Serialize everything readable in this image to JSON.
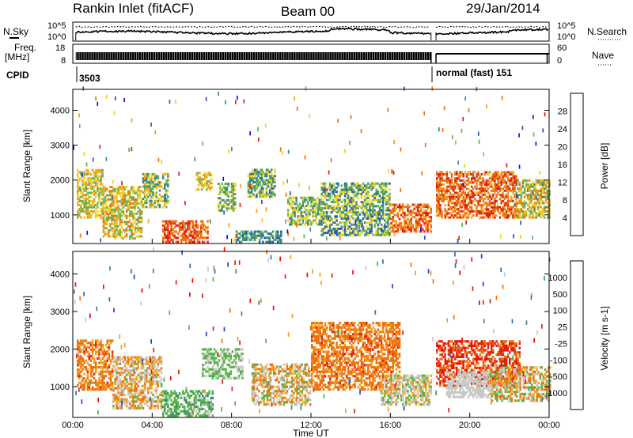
{
  "header": {
    "station": "Rankin Inlet (fitACF)",
    "beam": "Beam 00",
    "date": "29/Jan/2014"
  },
  "status_panel": {
    "nsky_label": "N.Sky",
    "nsky_ticks": [
      "10^5",
      "10^0"
    ],
    "nsearch_label": "N.Search",
    "nsearch_ticks": [
      "10^5",
      "10^0"
    ],
    "freq_label": "Freq.",
    "freq_unit": "[MHz]",
    "freq_ticks": [
      "18",
      "8"
    ],
    "nave_label": "Nave",
    "nave_ticks": [
      "60",
      "0"
    ],
    "cpid_label": "CPID",
    "cpid_first": "3503",
    "cpid_second": "normal (fast) 151"
  },
  "x_axis": {
    "label": "Time UT",
    "ticks": [
      "00:00",
      "04:00",
      "08:00",
      "12:00",
      "16:00",
      "20:00",
      "00:00"
    ],
    "range_hours": [
      0,
      24
    ]
  },
  "chart_data": [
    {
      "type": "heatmap",
      "panel": "power",
      "ylabel": "Slant Range [km]",
      "yticks": [
        "1000",
        "2000",
        "3000",
        "4000"
      ],
      "ylim": [
        180,
        4600
      ],
      "xlim": [
        0,
        24
      ],
      "colorbar_label": "Power [dB]",
      "colorbar_ticks": [
        "4",
        "8",
        "12",
        "16",
        "20",
        "24",
        "28"
      ],
      "colorbar_colors": [
        "#1010f0",
        "#2a58b4",
        "#3c8c7c",
        "#64b45a",
        "#f0d020",
        "#f0a020",
        "#f07010",
        "#e02010"
      ],
      "clim": [
        0,
        32
      ],
      "regions": [
        {
          "t": [
            0.2,
            1.5
          ],
          "r": [
            900,
            2300
          ],
          "v": [
            12,
            24
          ]
        },
        {
          "t": [
            1.5,
            3.5
          ],
          "r": [
            300,
            1800
          ],
          "v": [
            12,
            26
          ]
        },
        {
          "t": [
            3.5,
            4.8
          ],
          "r": [
            1200,
            2200
          ],
          "v": [
            8,
            22
          ]
        },
        {
          "t": [
            4.5,
            6.8
          ],
          "r": [
            200,
            800
          ],
          "v": [
            24,
            31
          ]
        },
        {
          "t": [
            6.2,
            7.0
          ],
          "r": [
            1700,
            2200
          ],
          "v": [
            14,
            24
          ]
        },
        {
          "t": [
            7.3,
            8.2
          ],
          "r": [
            1100,
            1900
          ],
          "v": [
            8,
            20
          ]
        },
        {
          "t": [
            8.2,
            10.5
          ],
          "r": [
            200,
            500
          ],
          "v": [
            6,
            14
          ]
        },
        {
          "t": [
            8.8,
            10.2
          ],
          "r": [
            1500,
            2300
          ],
          "v": [
            6,
            20
          ]
        },
        {
          "t": [
            10.8,
            12.5
          ],
          "r": [
            700,
            1500
          ],
          "v": [
            8,
            20
          ]
        },
        {
          "t": [
            12.5,
            16.0
          ],
          "r": [
            400,
            1900
          ],
          "v": [
            6,
            20
          ]
        },
        {
          "t": [
            16.0,
            18.0
          ],
          "r": [
            500,
            1300
          ],
          "v": [
            22,
            31
          ]
        },
        {
          "t": [
            18.3,
            22.3
          ],
          "r": [
            900,
            2200
          ],
          "v": [
            22,
            31
          ]
        },
        {
          "t": [
            22.3,
            24.0
          ],
          "r": [
            900,
            2000
          ],
          "v": [
            10,
            26
          ]
        }
      ]
    },
    {
      "type": "heatmap",
      "panel": "velocity",
      "ylabel": "Slant Range [km]",
      "yticks": [
        "1000",
        "2000",
        "3000",
        "4000"
      ],
      "ylim": [
        180,
        4600
      ],
      "xlim": [
        0,
        24
      ],
      "colorbar_label": "Velocity [m s-1]",
      "colorbar_ticks": [
        "1000",
        "500",
        "100",
        "25",
        "-25",
        "-100",
        "-500",
        "-1000"
      ],
      "colorbar_colors": [
        "#1c40d8",
        "#2c70b0",
        "#3c8c6c",
        "#58b448",
        "#c8c8c8",
        "#f0a020",
        "#f07010",
        "#e02010",
        "#ff0000"
      ],
      "clim": [
        -1200,
        1200
      ],
      "regions": [
        {
          "t": [
            0.2,
            2.0
          ],
          "r": [
            900,
            2200
          ],
          "v": [
            -700,
            -200
          ]
        },
        {
          "t": [
            2.0,
            4.5
          ],
          "r": [
            400,
            1800
          ],
          "v": [
            -600,
            200
          ]
        },
        {
          "t": [
            4.5,
            7.0
          ],
          "r": [
            200,
            900
          ],
          "v": [
            80,
            500
          ]
        },
        {
          "t": [
            6.5,
            8.5
          ],
          "r": [
            1200,
            2000
          ],
          "v": [
            50,
            300
          ]
        },
        {
          "t": [
            9.0,
            12.0
          ],
          "r": [
            500,
            1600
          ],
          "v": [
            -600,
            300
          ]
        },
        {
          "t": [
            12.0,
            16.5
          ],
          "r": [
            900,
            2700
          ],
          "v": [
            -700,
            -300
          ]
        },
        {
          "t": [
            15.5,
            18.0
          ],
          "r": [
            500,
            1300
          ],
          "v": [
            -300,
            300
          ]
        },
        {
          "t": [
            18.3,
            22.5
          ],
          "r": [
            1000,
            2200
          ],
          "v": [
            -1000,
            -400
          ]
        },
        {
          "t": [
            18.8,
            21.0
          ],
          "r": [
            700,
            1400
          ],
          "v": [
            -25,
            25
          ]
        },
        {
          "t": [
            21.0,
            24.0
          ],
          "r": [
            600,
            1500
          ],
          "v": [
            -600,
            300
          ]
        }
      ]
    }
  ]
}
